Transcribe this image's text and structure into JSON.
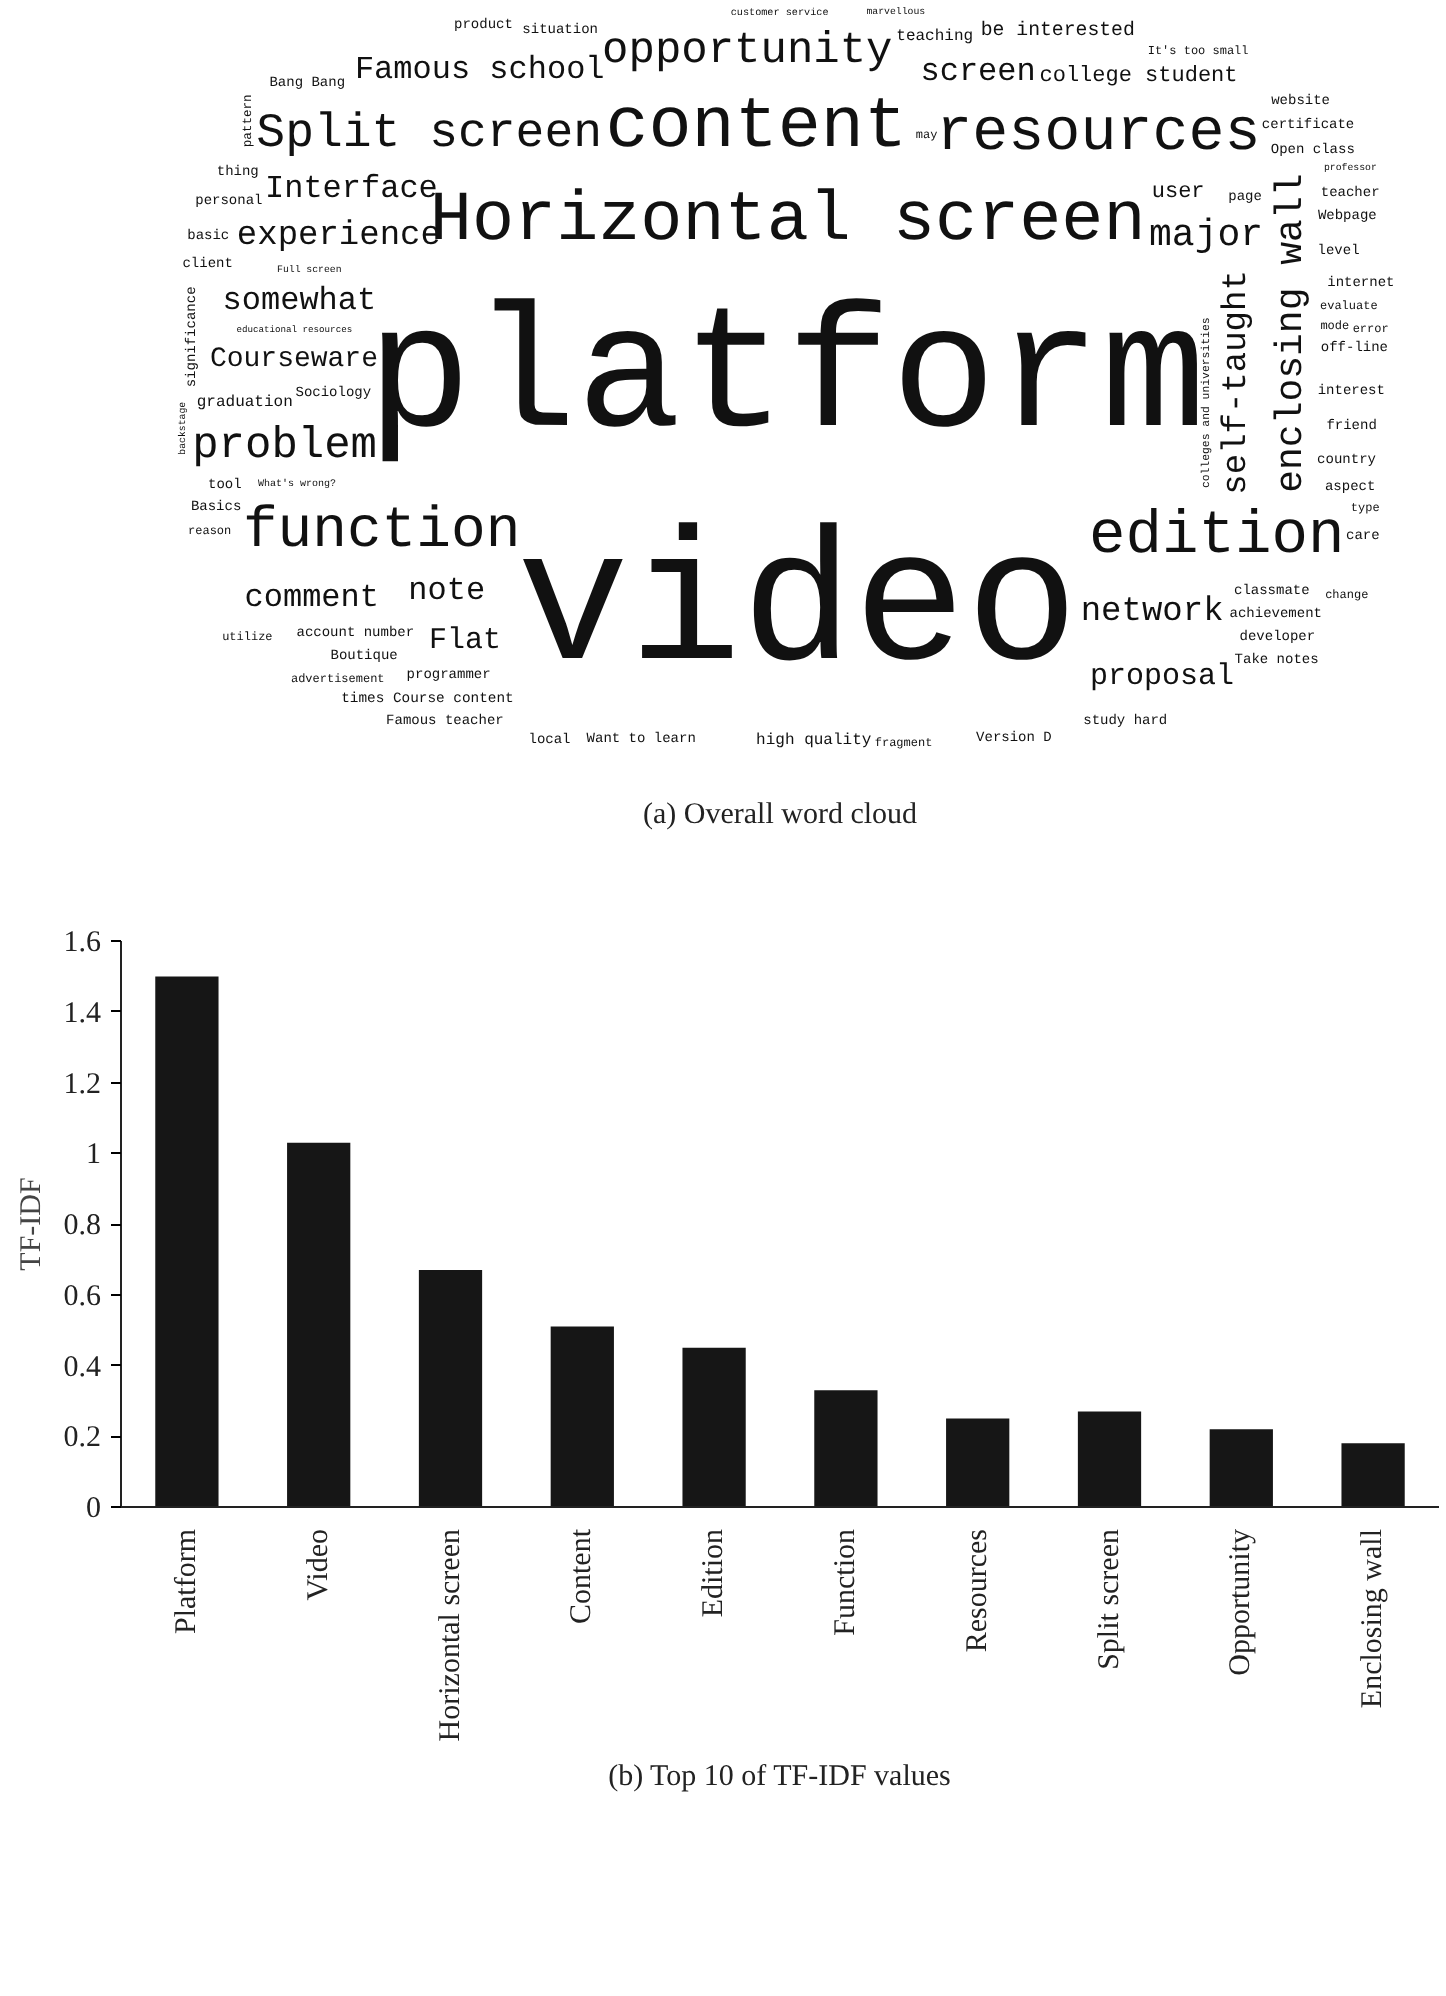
{
  "chart_data": [
    {
      "type": "other",
      "title": "(a) Overall word cloud",
      "annotations": [
        "platform",
        "video",
        "Horizontal screen",
        "content",
        "function",
        "resources",
        "edition",
        "Split screen",
        "opportunity",
        "enclosing wall",
        "experience",
        "Courseware",
        "problem",
        "major",
        "somewhat",
        "note",
        "Interface",
        "network",
        "screen",
        "Flat",
        "Famous school",
        "self-taught",
        "comment",
        "proposal",
        "college student",
        "user",
        "Sociology",
        "graduation",
        "teaching",
        "high quality",
        "programmer",
        "interest",
        "account number",
        "off-line",
        "friend",
        "evaluate",
        "be interested",
        "country",
        "internet",
        "Want to learn",
        "classmate",
        "aspect",
        "fragment",
        "situation",
        "times Course content",
        "Basics",
        "level",
        "achievement",
        "Boutique",
        "Version D",
        "page",
        "client",
        "mode",
        "Webpage",
        "basic",
        "Open class",
        "tool",
        "Famous teacher",
        "developer",
        "study hard",
        "certificate",
        "Take notes",
        "advertisement",
        "reason",
        "It's too small",
        "personal",
        "colleges and universities",
        "significance",
        "error",
        "local",
        "may",
        "teacher",
        "care",
        "thing",
        "product",
        "Bang Bang",
        "change",
        "website",
        "type",
        "What's wrong?",
        "customer service",
        "pattern",
        "educational resources",
        "backstage",
        "Full screen",
        "marvellous",
        "utilize",
        "professor"
      ]
    },
    {
      "type": "bar",
      "title": "(b) Top 10 of TF-IDF values",
      "ylabel": "TF-IDF",
      "categories": [
        "Platform",
        "Video",
        "Horizontal screen",
        "Content",
        "Edition",
        "Function",
        "Resources",
        "Split screen",
        "Opportunity",
        "Enclosing wall"
      ],
      "values": [
        1.5,
        1.03,
        0.67,
        0.51,
        0.45,
        0.33,
        0.25,
        0.27,
        0.22,
        0.18
      ],
      "color": "#161616",
      "ylim": [
        0,
        1.6
      ],
      "yticks": [
        0,
        0.2,
        0.4,
        0.6,
        0.8,
        1,
        1.2,
        1.4,
        1.6
      ],
      "grid": false
    }
  ]
}
